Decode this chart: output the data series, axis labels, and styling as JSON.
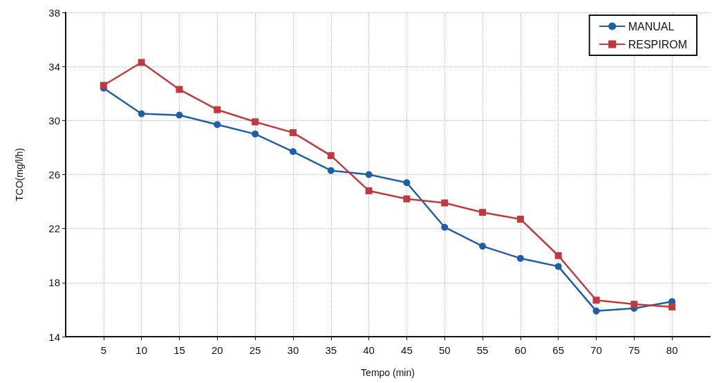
{
  "chart_data": {
    "type": "line",
    "xlabel": "Tempo (min)",
    "ylabel": "TCO(mg/l/h)",
    "x": [
      5,
      10,
      15,
      20,
      25,
      30,
      35,
      40,
      45,
      50,
      55,
      60,
      65,
      70,
      75,
      80
    ],
    "xlim": [
      0,
      85
    ],
    "xticks": [
      5,
      10,
      15,
      20,
      25,
      30,
      35,
      40,
      45,
      50,
      55,
      60,
      65,
      70,
      75,
      80
    ],
    "ylim": [
      14,
      38
    ],
    "yticks": [
      14,
      18,
      22,
      26,
      30,
      34,
      38
    ],
    "grid": true,
    "legend": "top right",
    "line_style": "solid",
    "series": [
      {
        "name": "MANUAL",
        "color": "#1f5fa8",
        "marker": "circle",
        "values": [
          32.4,
          30.5,
          30.4,
          29.7,
          29.0,
          27.7,
          26.3,
          26.0,
          25.4,
          22.1,
          20.7,
          19.8,
          19.2,
          15.9,
          16.1,
          16.6
        ]
      },
      {
        "name": "RESPIROM",
        "color": "#c0393f",
        "marker": "square",
        "values": [
          32.6,
          34.3,
          32.3,
          30.8,
          29.9,
          29.1,
          27.4,
          24.8,
          24.2,
          23.9,
          23.2,
          22.7,
          20.0,
          16.7,
          16.4,
          16.2
        ]
      }
    ]
  }
}
